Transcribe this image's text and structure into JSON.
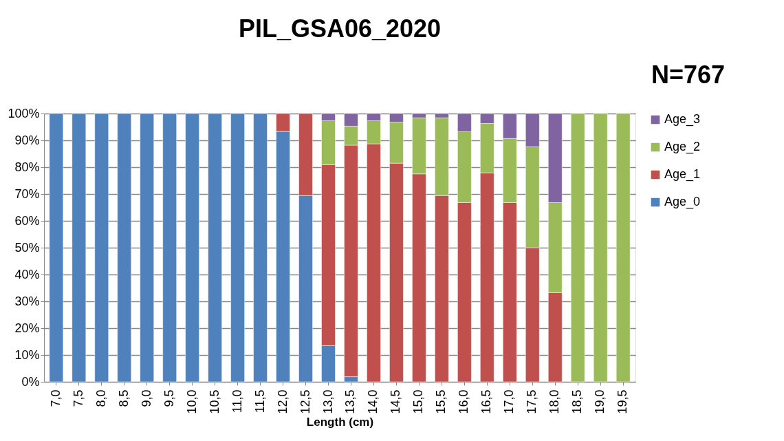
{
  "chart_data": {
    "type": "bar",
    "title": "PIL_GSA06_2020",
    "annotations": [
      "N=767"
    ],
    "xlabel": "Length (cm)",
    "stacked": true,
    "legend": "right",
    "grid": "y",
    "categories": [
      "7,0",
      "7,5",
      "8,0",
      "8,5",
      "9,0",
      "9,5",
      "10,0",
      "10,5",
      "11,0",
      "11,5",
      "12,0",
      "12,5",
      "13,0",
      "13,5",
      "14,0",
      "14,5",
      "15,0",
      "15,5",
      "16,0",
      "16,5",
      "17,0",
      "17,5",
      "18,0",
      "18,5",
      "19,0",
      "19,5"
    ],
    "ylim": [
      0,
      100
    ],
    "yticks": [
      {
        "value": 0,
        "label": "0%"
      },
      {
        "value": 10,
        "label": "10%"
      },
      {
        "value": 20,
        "label": "20%"
      },
      {
        "value": 30,
        "label": "30%"
      },
      {
        "value": 40,
        "label": "40%"
      },
      {
        "value": 50,
        "label": "50%"
      },
      {
        "value": 60,
        "label": "60%"
      },
      {
        "value": 70,
        "label": "70%"
      },
      {
        "value": 80,
        "label": "80%"
      },
      {
        "value": 90,
        "label": "90%"
      },
      {
        "value": 100,
        "label": "100%"
      }
    ],
    "series": [
      {
        "name": "Age_0",
        "color": "#4f81bd",
        "values": [
          100,
          100,
          100,
          100,
          100,
          100,
          100,
          100,
          100,
          100,
          93.3,
          69.4,
          13.5,
          1.9,
          null,
          null,
          null,
          null,
          null,
          null,
          null,
          null,
          null,
          null,
          null,
          null
        ]
      },
      {
        "name": "Age_1",
        "color": "#c0504d",
        "values": [
          null,
          null,
          null,
          null,
          null,
          null,
          null,
          null,
          null,
          null,
          6.7,
          30.6,
          67.4,
          86.3,
          88.7,
          81.5,
          77.5,
          69.4,
          66.8,
          77.9,
          66.8,
          50.0,
          33.2,
          null,
          null,
          null
        ]
      },
      {
        "name": "Age_2",
        "color": "#9bbb59",
        "values": [
          null,
          null,
          null,
          null,
          null,
          null,
          null,
          null,
          null,
          null,
          null,
          null,
          16.4,
          7.1,
          8.6,
          15.3,
          20.9,
          29.0,
          26.4,
          18.4,
          23.9,
          37.6,
          33.6,
          100,
          100,
          100
        ]
      },
      {
        "name": "Age_3",
        "color": "#8064a2",
        "values": [
          null,
          null,
          null,
          null,
          null,
          null,
          null,
          null,
          null,
          null,
          null,
          null,
          2.7,
          4.7,
          2.7,
          3.2,
          1.6,
          1.6,
          6.8,
          3.7,
          9.3,
          12.4,
          33.2,
          null,
          null,
          null
        ]
      }
    ]
  }
}
